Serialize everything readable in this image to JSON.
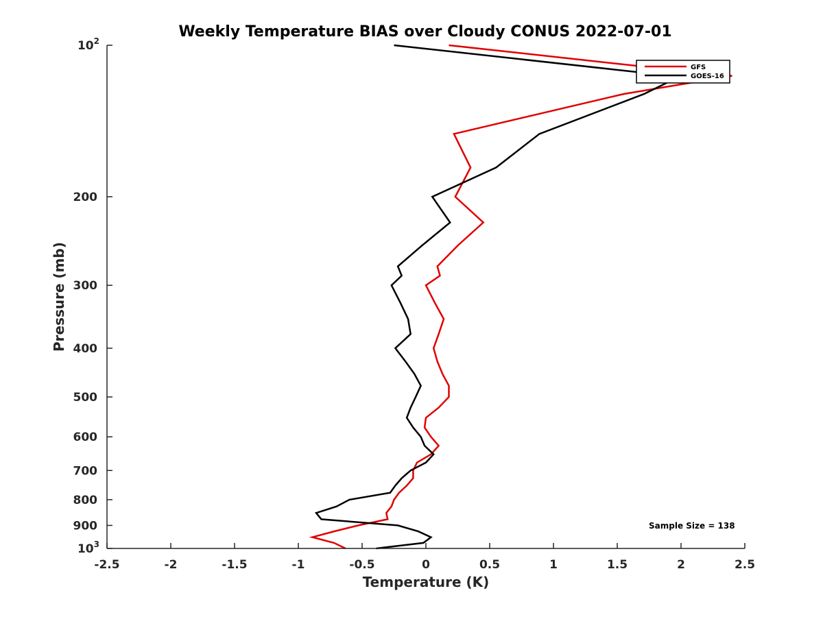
{
  "chart_data": {
    "type": "line",
    "title": "Weekly Temperature BIAS over Cloudy CONUS 2022-07-01",
    "xlabel": "Temperature (K)",
    "ylabel": "Pressure (mb)",
    "xlim": [
      -2.5,
      2.5
    ],
    "ylim": [
      100,
      1000
    ],
    "y_scale": "log",
    "y_reversed": true,
    "x_ticks": [
      "-2.5",
      "-2",
      "-1.5",
      "-1",
      "-0.5",
      "0",
      "0.5",
      "1",
      "1.5",
      "2",
      "2.5"
    ],
    "x_tick_values": [
      -2.5,
      -2,
      -1.5,
      -1,
      -0.5,
      0,
      0.5,
      1,
      1.5,
      2,
      2.5
    ],
    "y_ticks": [
      {
        "value": 100,
        "base": "10",
        "sup": "2"
      },
      {
        "value": 200,
        "base": "200",
        "sup": ""
      },
      {
        "value": 300,
        "base": "300",
        "sup": ""
      },
      {
        "value": 400,
        "base": "400",
        "sup": ""
      },
      {
        "value": 500,
        "base": "500",
        "sup": ""
      },
      {
        "value": 600,
        "base": "600",
        "sup": ""
      },
      {
        "value": 700,
        "base": "700",
        "sup": ""
      },
      {
        "value": 800,
        "base": "800",
        "sup": ""
      },
      {
        "value": 900,
        "base": "900",
        "sup": ""
      },
      {
        "value": 1000,
        "base": "10",
        "sup": "3"
      }
    ],
    "grid": false,
    "legend_position": "top-right",
    "series": [
      {
        "name": "GFS",
        "color": "#e00000",
        "points": [
          [
            0.18,
            100
          ],
          [
            1.67,
            110
          ],
          [
            2.4,
            115
          ],
          [
            1.55,
            125
          ],
          [
            0.22,
            150
          ],
          [
            0.35,
            175
          ],
          [
            0.23,
            200
          ],
          [
            0.45,
            225
          ],
          [
            0.25,
            250
          ],
          [
            0.09,
            275
          ],
          [
            0.11,
            287
          ],
          [
            0.0,
            300
          ],
          [
            0.07,
            325
          ],
          [
            0.14,
            350
          ],
          [
            0.1,
            375
          ],
          [
            0.06,
            400
          ],
          [
            0.09,
            425
          ],
          [
            0.13,
            450
          ],
          [
            0.18,
            475
          ],
          [
            0.18,
            500
          ],
          [
            0.1,
            525
          ],
          [
            0.0,
            550
          ],
          [
            -0.01,
            575
          ],
          [
            0.04,
            600
          ],
          [
            0.1,
            625
          ],
          [
            0.04,
            650
          ],
          [
            -0.07,
            675
          ],
          [
            -0.1,
            700
          ],
          [
            -0.1,
            725
          ],
          [
            -0.15,
            750
          ],
          [
            -0.21,
            775
          ],
          [
            -0.25,
            800
          ],
          [
            -0.27,
            825
          ],
          [
            -0.31,
            850
          ],
          [
            -0.3,
            875
          ],
          [
            -0.53,
            900
          ],
          [
            -0.72,
            925
          ],
          [
            -0.89,
            950
          ],
          [
            -0.72,
            975
          ],
          [
            -0.63,
            1000
          ]
        ]
      },
      {
        "name": "GOES-16",
        "color": "#000000",
        "points": [
          [
            -0.25,
            100
          ],
          [
            1.65,
            113
          ],
          [
            2.0,
            115
          ],
          [
            1.71,
            125
          ],
          [
            0.89,
            150
          ],
          [
            0.55,
            175
          ],
          [
            0.05,
            200
          ],
          [
            0.19,
            225
          ],
          [
            -0.03,
            250
          ],
          [
            -0.22,
            275
          ],
          [
            -0.19,
            287
          ],
          [
            -0.27,
            300
          ],
          [
            -0.2,
            325
          ],
          [
            -0.14,
            350
          ],
          [
            -0.12,
            375
          ],
          [
            -0.24,
            400
          ],
          [
            -0.16,
            425
          ],
          [
            -0.09,
            450
          ],
          [
            -0.04,
            475
          ],
          [
            -0.08,
            500
          ],
          [
            -0.12,
            525
          ],
          [
            -0.15,
            550
          ],
          [
            -0.1,
            575
          ],
          [
            -0.04,
            600
          ],
          [
            -0.01,
            625
          ],
          [
            0.06,
            650
          ],
          [
            0.0,
            675
          ],
          [
            -0.12,
            700
          ],
          [
            -0.19,
            725
          ],
          [
            -0.24,
            750
          ],
          [
            -0.28,
            775
          ],
          [
            -0.6,
            800
          ],
          [
            -0.7,
            825
          ],
          [
            -0.86,
            850
          ],
          [
            -0.82,
            875
          ],
          [
            -0.22,
            900
          ],
          [
            -0.06,
            925
          ],
          [
            0.04,
            950
          ],
          [
            -0.02,
            975
          ],
          [
            -0.39,
            1000
          ]
        ]
      }
    ],
    "annotations": [
      {
        "text": "Sample Size = 138"
      }
    ]
  }
}
